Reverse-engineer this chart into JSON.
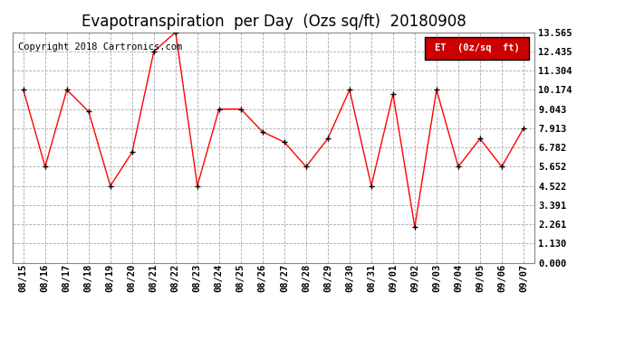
{
  "title": "Evapotranspiration  per Day  (Ozs sq/ft)  20180908",
  "copyright": "Copyright 2018 Cartronics.com",
  "legend_label": "ET  (0z/sq  ft)",
  "dates": [
    "08/15",
    "08/16",
    "08/17",
    "08/18",
    "08/19",
    "08/20",
    "08/21",
    "08/22",
    "08/23",
    "08/24",
    "08/25",
    "08/26",
    "08/27",
    "08/28",
    "08/29",
    "08/30",
    "08/31",
    "09/01",
    "09/02",
    "09/03",
    "09/04",
    "09/05",
    "09/06",
    "09/07"
  ],
  "values": [
    10.174,
    5.652,
    10.174,
    8.9,
    4.522,
    6.5,
    12.435,
    13.565,
    4.522,
    9.043,
    9.043,
    7.7,
    7.1,
    5.652,
    7.3,
    10.174,
    4.522,
    9.913,
    2.1,
    10.174,
    5.652,
    7.3,
    5.652,
    7.913
  ],
  "yticks": [
    0.0,
    1.13,
    2.261,
    3.391,
    4.522,
    5.652,
    6.782,
    7.913,
    9.043,
    10.174,
    11.304,
    12.435,
    13.565
  ],
  "ylim": [
    0.0,
    13.565
  ],
  "line_color": "red",
  "marker_color": "black",
  "bg_color": "white",
  "grid_color": "#aaaaaa",
  "title_fontsize": 12,
  "copyright_fontsize": 7.5,
  "legend_bg_color": "#cc0000",
  "legend_text_color": "white"
}
